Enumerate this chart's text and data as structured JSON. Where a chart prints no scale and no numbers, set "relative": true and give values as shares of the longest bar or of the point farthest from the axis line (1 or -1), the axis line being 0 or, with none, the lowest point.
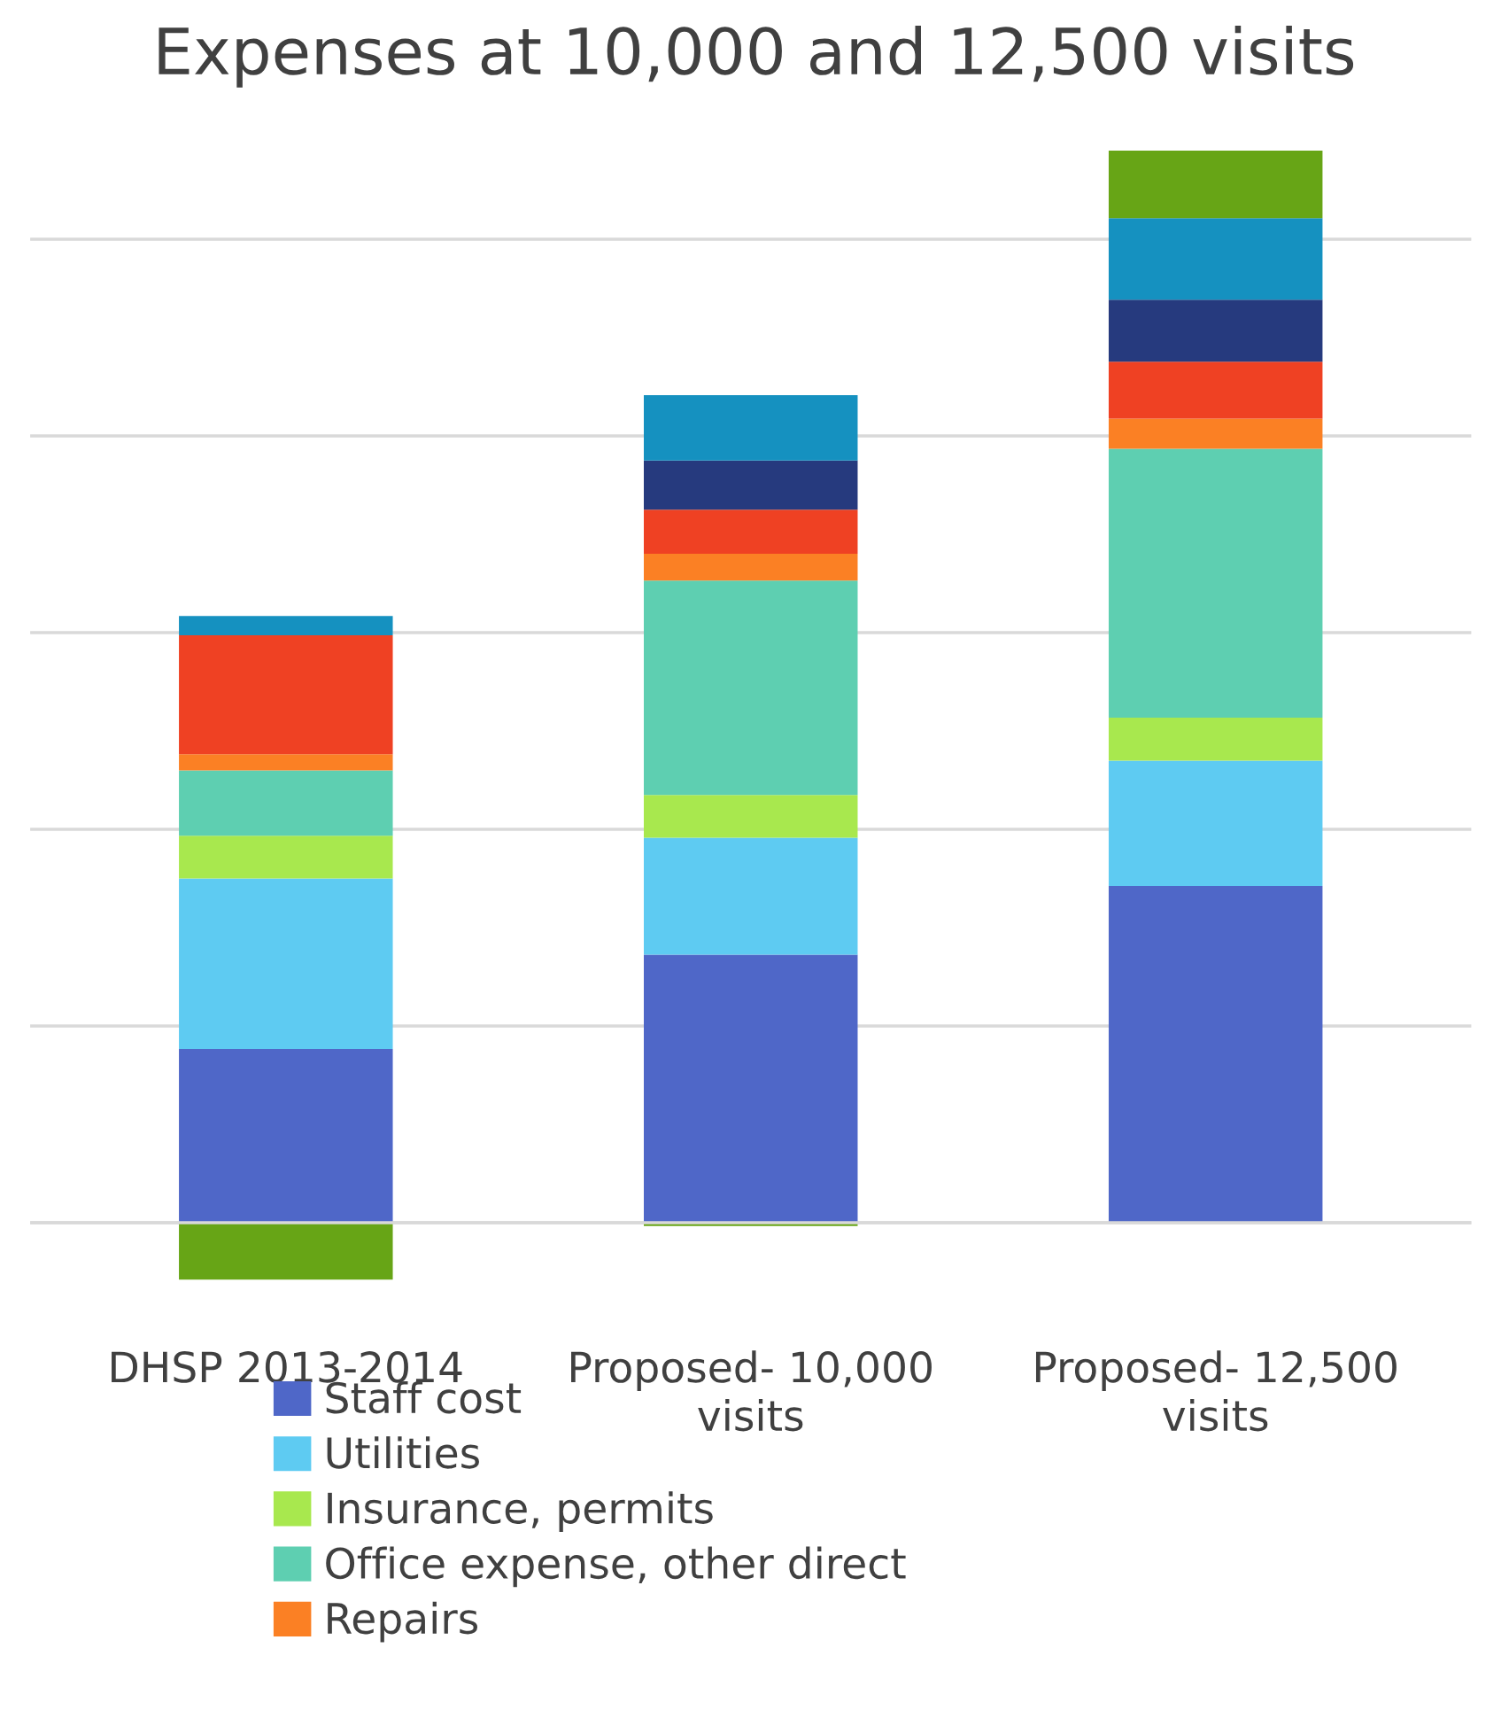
{
  "chart_data": {
    "type": "bar",
    "title": "Expenses at 10,000 and 12,500 visits",
    "relative": true,
    "stacked": true,
    "categories": [
      "DHSP 2013-2014",
      "Proposed- 10,000 visits",
      "Proposed- 12,500 visits"
    ],
    "series": [
      {
        "name": "Staff cost",
        "color": "#4f67c8",
        "values": [
          0.162,
          0.25,
          0.314
        ]
      },
      {
        "name": "Utilities",
        "color": "#5ecbf2",
        "values": [
          0.159,
          0.109,
          0.117
        ]
      },
      {
        "name": "Insurance, permits",
        "color": "#a8e84e",
        "values": [
          0.04,
          0.04,
          0.04
        ]
      },
      {
        "name": "Office expense, other direct",
        "color": "#5ecfb1",
        "values": [
          0.061,
          0.2,
          0.251
        ]
      },
      {
        "name": "Repairs",
        "color": "#fb8024",
        "values": [
          0.015,
          0.025,
          0.028
        ]
      },
      {
        "color": "#ef4123",
        "values": [
          0.111,
          0.041,
          0.053
        ]
      },
      {
        "color": "#263a7e",
        "values": [
          0,
          0.046,
          0.058
        ]
      },
      {
        "color": "#1591c0",
        "values": [
          0.018,
          0.061,
          0.076
        ]
      },
      {
        "color": "#67a516",
        "values": [
          -0.053,
          -0.003,
          0.063
        ]
      }
    ],
    "grid": "y",
    "legend": "bottom"
  }
}
